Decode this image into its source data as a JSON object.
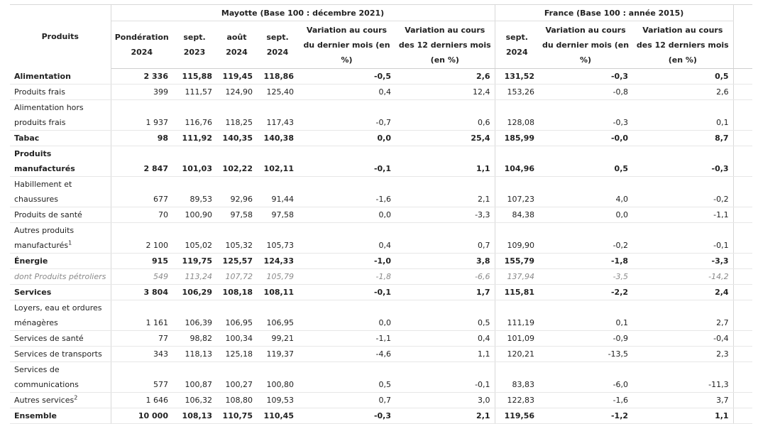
{
  "headers": {
    "group_mayotte": "Mayotte (Base 100 : décembre 2021)",
    "group_france": "France (Base 100 : année 2015)",
    "produits": "Produits",
    "ponderation": "Pondération 2024",
    "sept2023": "sept. 2023",
    "aout2024": "août 2024",
    "sept2024": "sept. 2024",
    "var_mois": "Variation au cours du dernier mois (en %)",
    "var_12": "Variation au cours des 12 derniers mois (en %)",
    "fr_sept2024": "sept. 2024",
    "fr_var_mois": "Variation au cours du dernier mois (en %)",
    "fr_var_12": "Variation au cours des 12 derniers mois (en %)"
  },
  "rows": [
    {
      "label": "Alimentation",
      "sup": "",
      "style": "bold",
      "tall": false,
      "pond": "2 336",
      "sep23": "115,88",
      "aou24": "119,45",
      "sep24": "118,86",
      "var_m": "-0,5",
      "var_12": "2,6",
      "fr_sep24": "131,52",
      "fr_var_m": "-0,3",
      "fr_var_12": "0,5"
    },
    {
      "label": "Produits frais",
      "sup": "",
      "style": "normal",
      "tall": false,
      "pond": "399",
      "sep23": "111,57",
      "aou24": "124,90",
      "sep24": "125,40",
      "var_m": "0,4",
      "var_12": "12,4",
      "fr_sep24": "153,26",
      "fr_var_m": "-0,8",
      "fr_var_12": "2,6"
    },
    {
      "label": "Alimentation hors produits frais",
      "sup": "",
      "style": "normal",
      "tall": true,
      "pond": "1 937",
      "sep23": "116,76",
      "aou24": "118,25",
      "sep24": "117,43",
      "var_m": "-0,7",
      "var_12": "0,6",
      "fr_sep24": "128,08",
      "fr_var_m": "-0,3",
      "fr_var_12": "0,1"
    },
    {
      "label": "Tabac",
      "sup": "",
      "style": "bold",
      "tall": false,
      "pond": "98",
      "sep23": "111,92",
      "aou24": "140,35",
      "sep24": "140,38",
      "var_m": "0,0",
      "var_12": "25,4",
      "fr_sep24": "185,99",
      "fr_var_m": "-0,0",
      "fr_var_12": "8,7"
    },
    {
      "label": "Produits manufacturés",
      "sup": "",
      "style": "bold",
      "tall": true,
      "pond": "2 847",
      "sep23": "101,03",
      "aou24": "102,22",
      "sep24": "102,11",
      "var_m": "-0,1",
      "var_12": "1,1",
      "fr_sep24": "104,96",
      "fr_var_m": "0,5",
      "fr_var_12": "-0,3"
    },
    {
      "label": "Habillement et chaussures",
      "sup": "",
      "style": "normal",
      "tall": true,
      "pond": "677",
      "sep23": "89,53",
      "aou24": "92,96",
      "sep24": "91,44",
      "var_m": "-1,6",
      "var_12": "2,1",
      "fr_sep24": "107,23",
      "fr_var_m": "4,0",
      "fr_var_12": "-0,2"
    },
    {
      "label": "Produits de santé",
      "sup": "",
      "style": "normal",
      "tall": false,
      "pond": "70",
      "sep23": "100,90",
      "aou24": "97,58",
      "sep24": "97,58",
      "var_m": "0,0",
      "var_12": "-3,3",
      "fr_sep24": "84,38",
      "fr_var_m": "0,0",
      "fr_var_12": "-1,1"
    },
    {
      "label": "Autres produits manufacturés",
      "sup": "1",
      "style": "normal",
      "tall": true,
      "pond": "2 100",
      "sep23": "105,02",
      "aou24": "105,32",
      "sep24": "105,73",
      "var_m": "0,4",
      "var_12": "0,7",
      "fr_sep24": "109,90",
      "fr_var_m": "-0,2",
      "fr_var_12": "-0,1"
    },
    {
      "label": "Énergie",
      "sup": "",
      "style": "bold",
      "tall": false,
      "pond": "915",
      "sep23": "119,75",
      "aou24": "125,57",
      "sep24": "124,33",
      "var_m": "-1,0",
      "var_12": "3,8",
      "fr_sep24": "155,79",
      "fr_var_m": "-1,8",
      "fr_var_12": "-3,3"
    },
    {
      "label": "dont Produits pétroliers",
      "sup": "",
      "style": "italic",
      "tall": false,
      "pond": "549",
      "sep23": "113,24",
      "aou24": "107,72",
      "sep24": "105,79",
      "var_m": "-1,8",
      "var_12": "-6,6",
      "fr_sep24": "137,94",
      "fr_var_m": "-3,5",
      "fr_var_12": "-14,2"
    },
    {
      "label": "Services",
      "sup": "",
      "style": "bold",
      "tall": false,
      "pond": "3 804",
      "sep23": "106,29",
      "aou24": "108,18",
      "sep24": "108,11",
      "var_m": "-0,1",
      "var_12": "1,7",
      "fr_sep24": "115,81",
      "fr_var_m": "-2,2",
      "fr_var_12": "2,4"
    },
    {
      "label": "Loyers, eau et ordures ménagères",
      "sup": "",
      "style": "normal",
      "tall": true,
      "pond": "1 161",
      "sep23": "106,39",
      "aou24": "106,95",
      "sep24": "106,95",
      "var_m": "0,0",
      "var_12": "0,5",
      "fr_sep24": "111,19",
      "fr_var_m": "0,1",
      "fr_var_12": "2,7"
    },
    {
      "label": "Services de santé",
      "sup": "",
      "style": "normal",
      "tall": false,
      "pond": "77",
      "sep23": "98,82",
      "aou24": "100,34",
      "sep24": "99,21",
      "var_m": "-1,1",
      "var_12": "0,4",
      "fr_sep24": "101,09",
      "fr_var_m": "-0,9",
      "fr_var_12": "-0,4"
    },
    {
      "label": "Services de transports",
      "sup": "",
      "style": "normal",
      "tall": false,
      "pond": "343",
      "sep23": "118,13",
      "aou24": "125,18",
      "sep24": "119,37",
      "var_m": "-4,6",
      "var_12": "1,1",
      "fr_sep24": "120,21",
      "fr_var_m": "-13,5",
      "fr_var_12": "2,3"
    },
    {
      "label": "Services de communications",
      "sup": "",
      "style": "normal",
      "tall": true,
      "pond": "577",
      "sep23": "100,87",
      "aou24": "100,27",
      "sep24": "100,80",
      "var_m": "0,5",
      "var_12": "-0,1",
      "fr_sep24": "83,83",
      "fr_var_m": "-6,0",
      "fr_var_12": "-11,3"
    },
    {
      "label": "Autres services",
      "sup": "2",
      "style": "normal",
      "tall": false,
      "pond": "1 646",
      "sep23": "106,32",
      "aou24": "108,80",
      "sep24": "109,53",
      "var_m": "0,7",
      "var_12": "3,0",
      "fr_sep24": "122,83",
      "fr_var_m": "-1,6",
      "fr_var_12": "3,7"
    },
    {
      "label": "Ensemble",
      "sup": "",
      "style": "bold",
      "tall": false,
      "pond": "10 000",
      "sep23": "108,13",
      "aou24": "110,75",
      "sep24": "110,45",
      "var_m": "-0,3",
      "var_12": "2,1",
      "fr_sep24": "119,56",
      "fr_var_m": "-1,2",
      "fr_var_12": "1,1"
    }
  ]
}
